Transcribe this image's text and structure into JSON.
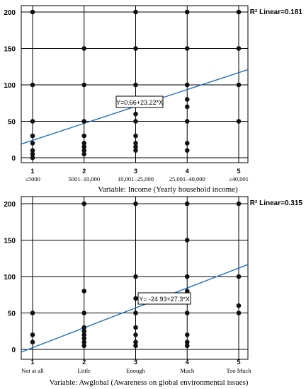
{
  "chart_data": [
    {
      "type": "scatter",
      "xlabel": "Variable: Income (Yearly household income)",
      "categories": [
        "≤5000",
        "5001–10,000",
        "10,001–25,000",
        "25,001–40,000",
        "≥40,001"
      ],
      "x_ticks": [
        1,
        2,
        3,
        4,
        5
      ],
      "y_ticks": [
        0,
        50,
        100,
        150,
        200
      ],
      "xlim": [
        0.6,
        5.3
      ],
      "ylim": [
        -10,
        208
      ],
      "grid": true,
      "points": [
        {
          "x": 1,
          "y": 0
        },
        {
          "x": 1,
          "y": 5
        },
        {
          "x": 1,
          "y": 10
        },
        {
          "x": 1,
          "y": 20
        },
        {
          "x": 1,
          "y": 30
        },
        {
          "x": 1,
          "y": 50
        },
        {
          "x": 1,
          "y": 100
        },
        {
          "x": 1,
          "y": 200
        },
        {
          "x": 2,
          "y": 5
        },
        {
          "x": 2,
          "y": 10
        },
        {
          "x": 2,
          "y": 15
        },
        {
          "x": 2,
          "y": 20
        },
        {
          "x": 2,
          "y": 30
        },
        {
          "x": 2,
          "y": 50
        },
        {
          "x": 2,
          "y": 100
        },
        {
          "x": 2,
          "y": 150
        },
        {
          "x": 3,
          "y": 10
        },
        {
          "x": 3,
          "y": 15
        },
        {
          "x": 3,
          "y": 20
        },
        {
          "x": 3,
          "y": 30
        },
        {
          "x": 3,
          "y": 50
        },
        {
          "x": 3,
          "y": 60
        },
        {
          "x": 3,
          "y": 100
        },
        {
          "x": 3,
          "y": 150
        },
        {
          "x": 3,
          "y": 200
        },
        {
          "x": 4,
          "y": 10
        },
        {
          "x": 4,
          "y": 20
        },
        {
          "x": 4,
          "y": 50
        },
        {
          "x": 4,
          "y": 70
        },
        {
          "x": 4,
          "y": 80
        },
        {
          "x": 4,
          "y": 100
        },
        {
          "x": 4,
          "y": 150
        },
        {
          "x": 4,
          "y": 200
        },
        {
          "x": 5,
          "y": 50
        },
        {
          "x": 5,
          "y": 100
        },
        {
          "x": 5,
          "y": 150
        },
        {
          "x": 5,
          "y": 200
        }
      ],
      "fit_line": {
        "intercept": 0.66,
        "slope": 23.22,
        "color": "#1f6fc5"
      },
      "equation_label": "Y=0.66+23.22*X",
      "r2_label": "R² Linear=0.181"
    },
    {
      "type": "scatter",
      "xlabel": "Variable: Awglobal (Awareness on global environmental issues)",
      "categories": [
        "Not at all",
        "Little",
        "Enough",
        "Much",
        "Too Much"
      ],
      "x_ticks": [
        1,
        2,
        3,
        4,
        5
      ],
      "y_ticks": [
        0,
        50,
        100,
        150,
        200
      ],
      "xlim": [
        0.6,
        5.3
      ],
      "ylim": [
        -10,
        208
      ],
      "grid": true,
      "points": [
        {
          "x": 1,
          "y": 10
        },
        {
          "x": 1,
          "y": 20
        },
        {
          "x": 1,
          "y": 50
        },
        {
          "x": 2,
          "y": 5
        },
        {
          "x": 2,
          "y": 10
        },
        {
          "x": 2,
          "y": 15
        },
        {
          "x": 2,
          "y": 20
        },
        {
          "x": 2,
          "y": 25
        },
        {
          "x": 2,
          "y": 30
        },
        {
          "x": 2,
          "y": 50
        },
        {
          "x": 2,
          "y": 80
        },
        {
          "x": 2,
          "y": 200
        },
        {
          "x": 3,
          "y": 5
        },
        {
          "x": 3,
          "y": 10
        },
        {
          "x": 3,
          "y": 20
        },
        {
          "x": 3,
          "y": 30
        },
        {
          "x": 3,
          "y": 50
        },
        {
          "x": 3,
          "y": 70
        },
        {
          "x": 3,
          "y": 100
        },
        {
          "x": 3,
          "y": 200
        },
        {
          "x": 4,
          "y": 5
        },
        {
          "x": 4,
          "y": 10
        },
        {
          "x": 4,
          "y": 20
        },
        {
          "x": 4,
          "y": 50
        },
        {
          "x": 4,
          "y": 80
        },
        {
          "x": 4,
          "y": 100
        },
        {
          "x": 4,
          "y": 150
        },
        {
          "x": 4,
          "y": 200
        },
        {
          "x": 5,
          "y": 50
        },
        {
          "x": 5,
          "y": 60
        },
        {
          "x": 5,
          "y": 100
        },
        {
          "x": 5,
          "y": 200
        }
      ],
      "fit_line": {
        "intercept": -24.93,
        "slope": 27.3,
        "color": "#1f6fc5"
      },
      "equation_label": "Y= -24.93+27.3*X",
      "r2_label": "R² Linear=0.315"
    }
  ]
}
